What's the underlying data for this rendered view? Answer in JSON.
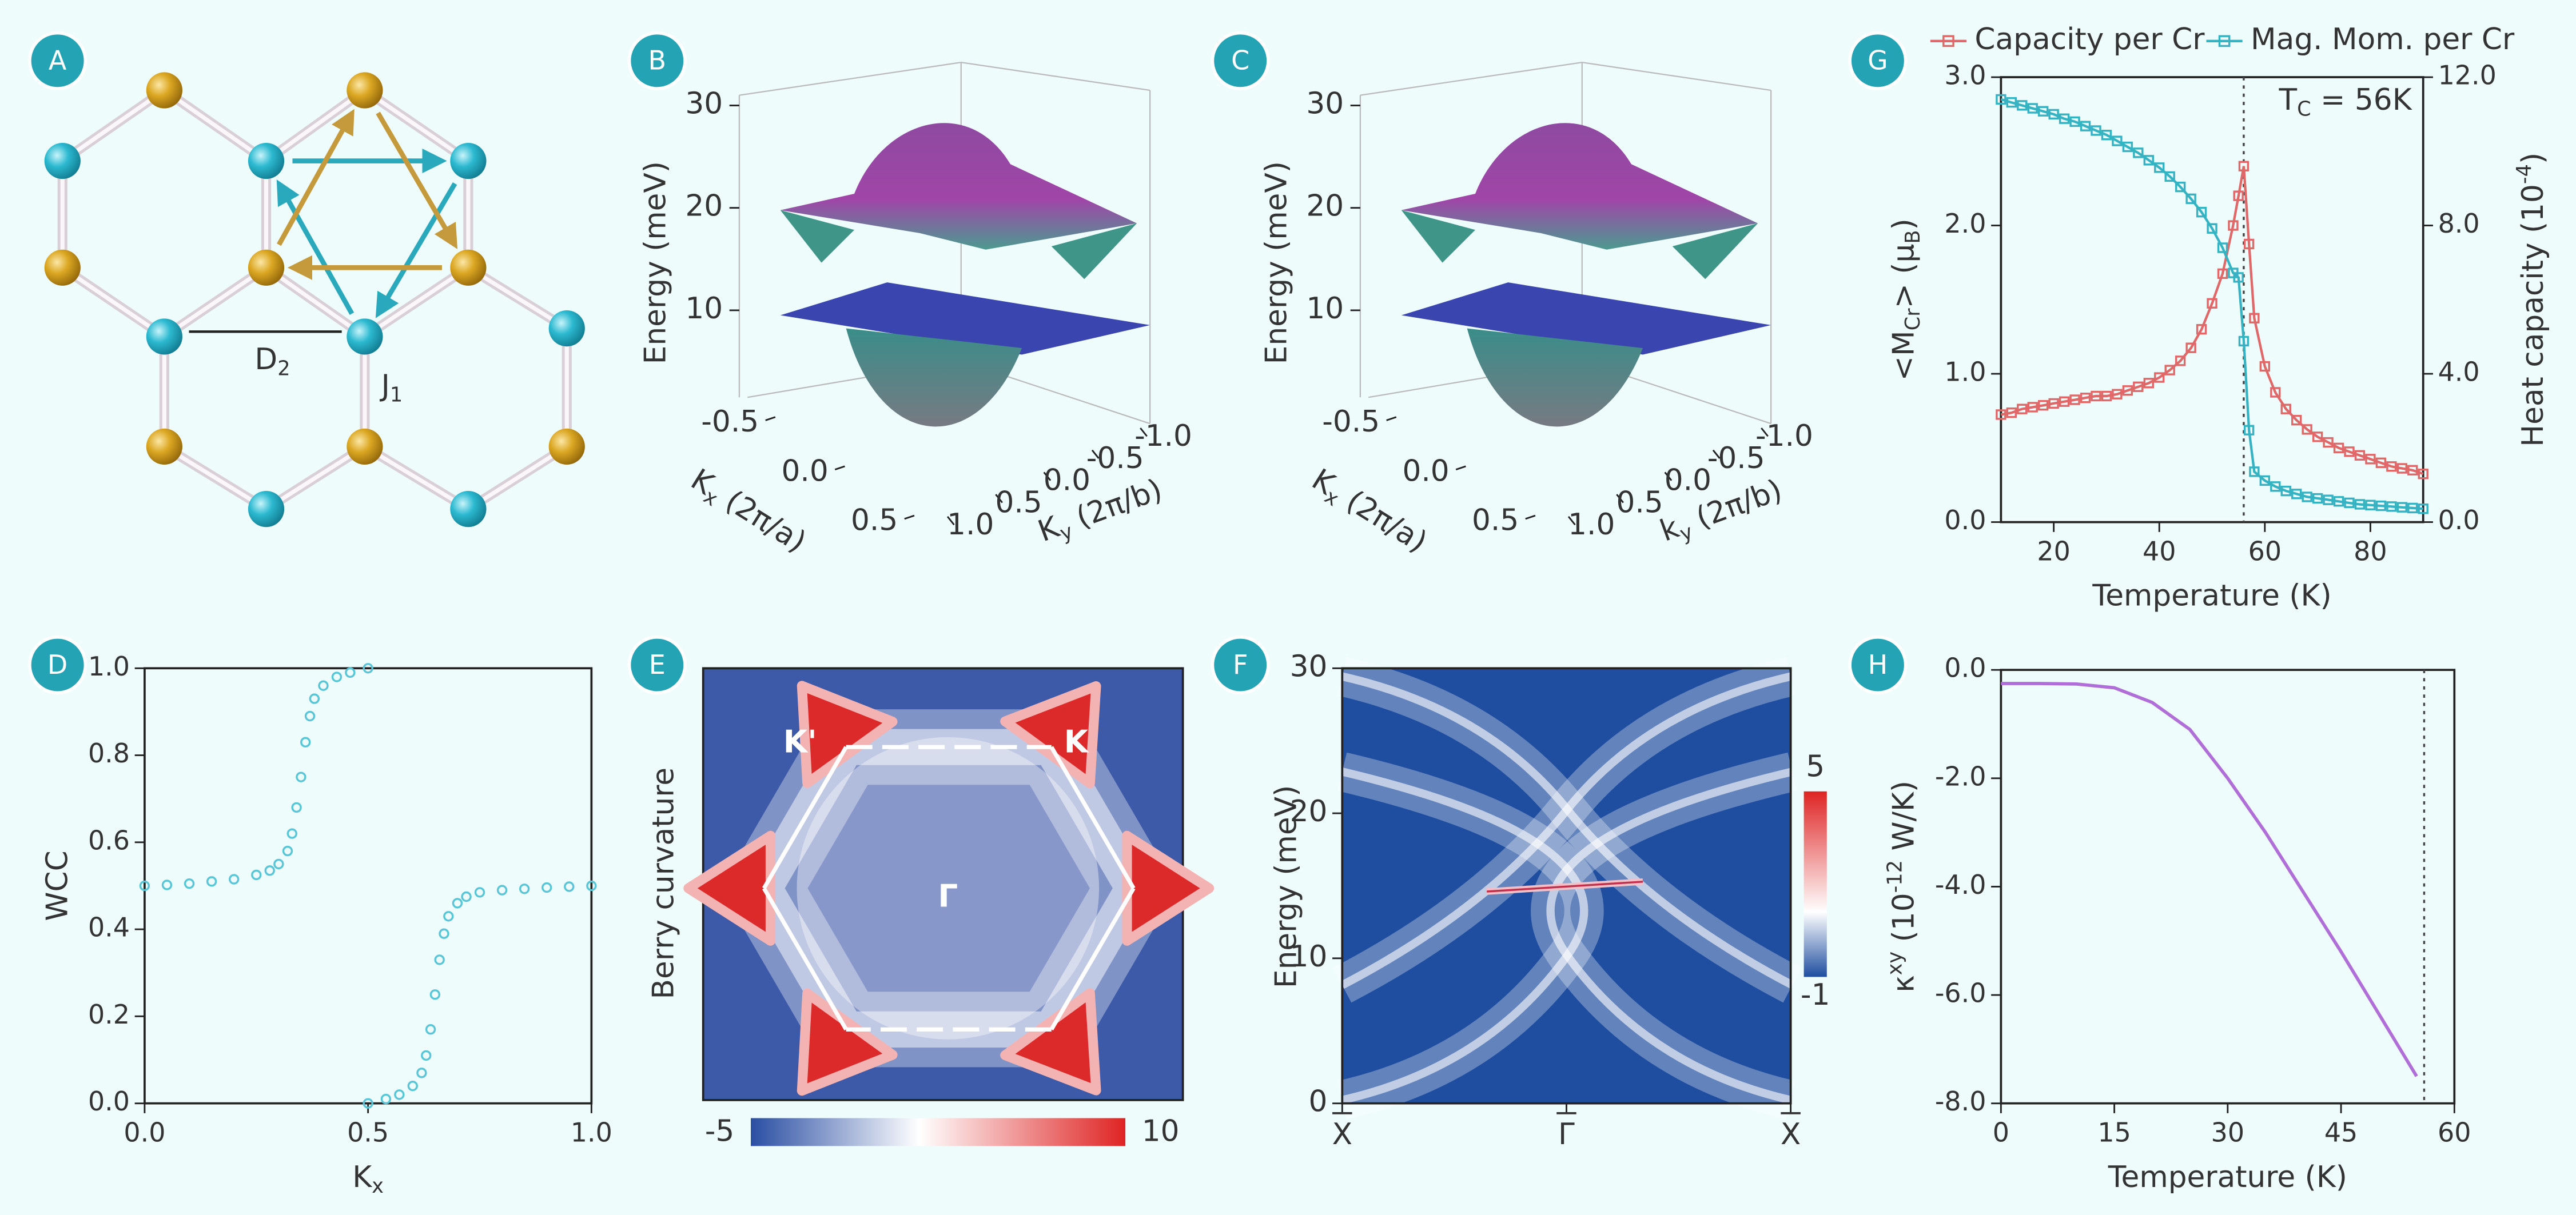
{
  "lattice": {
    "label": "A",
    "annotations": [
      [
        {
          "text": "D"
        },
        {
          "sub": "2"
        }
      ],
      [
        {
          "text": "J"
        },
        {
          "sub": "1"
        }
      ]
    ]
  },
  "chart_data": [
    {
      "type": "surface",
      "label": "B",
      "zlabel": "Energy (meV)",
      "zlim": [
        1.5,
        31
      ],
      "zticks": [
        30,
        20,
        10
      ],
      "kxlabel": [
        {
          "text": "K"
        },
        {
          "sub": "x"
        },
        {
          "text": " (2π/a)"
        }
      ],
      "kxlim": [
        -0.7,
        0.6
      ],
      "kxticks": [
        -0.5,
        {
          "value": 0,
          "label": "0.0"
        },
        0.5
      ],
      "kylabel": [
        {
          "text": "K"
        },
        {
          "sub": "y"
        },
        {
          "text": " (2π/b)"
        }
      ],
      "kylim": [
        1.2,
        -1.1
      ],
      "kyticks": [
        {
          "value": 1,
          "label": "1.0"
        },
        0.5,
        {
          "value": 0,
          "label": "0.0"
        },
        -0.5,
        {
          "value": -1,
          "label": "-1.0"
        }
      ]
    },
    {
      "type": "surface",
      "label": "C",
      "zlabel": "Energy (meV)",
      "zlim": [
        1.5,
        31
      ],
      "zticks": [
        30,
        20,
        10
      ],
      "kxlabel": [
        {
          "text": "K"
        },
        {
          "sub": "x"
        },
        {
          "text": " (2π/a)"
        }
      ],
      "kxlim": [
        -0.7,
        0.6
      ],
      "kxticks": [
        -0.5,
        {
          "value": 0,
          "label": "0.0"
        },
        0.5
      ],
      "kylabel": [
        {
          "text": "k"
        },
        {
          "sub": "y"
        },
        {
          "text": " (2π/b)"
        }
      ],
      "kylim": [
        1.2,
        -1.1
      ],
      "kyticks": [
        {
          "value": 1,
          "label": "1.0"
        },
        0.5,
        {
          "value": 0,
          "label": "0.0"
        },
        -0.5,
        {
          "value": -1,
          "label": "-1.0"
        }
      ]
    },
    {
      "type": "line",
      "label": "G",
      "xlabel": "Temperature (K)",
      "ylabel": [
        {
          "text": "<M"
        },
        {
          "sub": "Cr"
        },
        {
          "text": "> (μ"
        },
        {
          "sub": "B"
        },
        {
          "text": ")"
        }
      ],
      "y2label": [
        {
          "text": "Heat capacity (10"
        },
        {
          "sup": "-4"
        },
        {
          "text": ")"
        }
      ],
      "xlim": [
        10,
        90
      ],
      "xticks": [
        20,
        40,
        60,
        80
      ],
      "ylim": [
        0,
        3
      ],
      "yticks": [
        {
          "value": 0,
          "label": "0.0"
        },
        {
          "value": 1,
          "label": "1.0"
        },
        {
          "value": 2,
          "label": "2.0"
        },
        {
          "value": 3,
          "label": "3.0"
        }
      ],
      "y2lim": [
        0,
        12
      ],
      "y2ticks": [
        {
          "value": 0,
          "label": "0.0"
        },
        {
          "value": 4,
          "label": "4.0"
        },
        {
          "value": 8,
          "label": "8.0"
        },
        {
          "value": 12,
          "label": "12.0"
        }
      ],
      "vline": 56,
      "annotation": [
        {
          "text": "T"
        },
        {
          "sub": "C"
        },
        {
          "text": " = 56K"
        }
      ],
      "x": [
        10,
        12,
        14,
        16,
        18,
        20,
        22,
        24,
        26,
        28,
        30,
        32,
        34,
        36,
        38,
        40,
        42,
        44,
        46,
        48,
        50,
        52,
        54,
        55,
        56,
        57,
        58,
        60,
        62,
        64,
        66,
        68,
        70,
        72,
        74,
        76,
        78,
        80,
        82,
        84,
        86,
        88,
        90
      ],
      "series": [
        {
          "name": "Capacity per Cr",
          "color": "#e06868",
          "axis": "y2",
          "values": [
            2.9,
            2.95,
            3.05,
            3.1,
            3.15,
            3.2,
            3.25,
            3.3,
            3.35,
            3.4,
            3.4,
            3.45,
            3.55,
            3.65,
            3.75,
            3.9,
            4.1,
            4.35,
            4.7,
            5.2,
            5.9,
            6.7,
            8.0,
            8.8,
            9.6,
            7.5,
            5.5,
            4.2,
            3.5,
            3.05,
            2.75,
            2.5,
            2.3,
            2.15,
            2.0,
            1.9,
            1.8,
            1.7,
            1.6,
            1.5,
            1.45,
            1.4,
            1.3
          ]
        },
        {
          "name": "Mag. Mom. per Cr",
          "color": "#35b3c3",
          "values": [
            2.85,
            2.83,
            2.81,
            2.79,
            2.77,
            2.75,
            2.72,
            2.7,
            2.67,
            2.64,
            2.61,
            2.57,
            2.53,
            2.49,
            2.44,
            2.39,
            2.33,
            2.26,
            2.18,
            2.09,
            1.98,
            1.85,
            1.68,
            1.65,
            1.22,
            0.62,
            0.34,
            0.28,
            0.24,
            0.21,
            0.19,
            0.17,
            0.16,
            0.15,
            0.14,
            0.13,
            0.12,
            0.115,
            0.11,
            0.105,
            0.1,
            0.095,
            0.09
          ]
        }
      ]
    },
    {
      "type": "scatter",
      "label": "D",
      "xlabel": [
        {
          "text": "K"
        },
        {
          "sub": "x"
        }
      ],
      "ylabel": "WCC",
      "xlim": [
        0,
        1
      ],
      "xticks": [
        {
          "value": 0,
          "label": "0.0"
        },
        0.5,
        {
          "value": 1,
          "label": "1.0"
        }
      ],
      "ylim": [
        0,
        1
      ],
      "yticks": [
        {
          "value": 0,
          "label": "0.0"
        },
        0.2,
        0.4,
        0.6,
        0.8,
        {
          "value": 1,
          "label": "1.0"
        }
      ],
      "series": [
        {
          "color": "#58c6d6",
          "x": [
            0,
            0.05,
            0.1,
            0.15,
            0.2,
            0.25,
            0.28,
            0.3,
            0.32,
            0.33,
            0.34,
            0.35,
            0.36,
            0.37,
            0.38,
            0.4,
            0.43,
            0.46,
            0.5
          ],
          "values": [
            0.5,
            0.502,
            0.505,
            0.51,
            0.515,
            0.525,
            0.535,
            0.55,
            0.58,
            0.62,
            0.68,
            0.75,
            0.83,
            0.89,
            0.93,
            0.96,
            0.98,
            0.99,
            1.0
          ]
        },
        {
          "color": "#58c6d6",
          "x": [
            0.5,
            0.54,
            0.57,
            0.6,
            0.62,
            0.63,
            0.64,
            0.65,
            0.66,
            0.67,
            0.68,
            0.7,
            0.72,
            0.75,
            0.8,
            0.85,
            0.9,
            0.95,
            1.0
          ],
          "values": [
            0.0,
            0.01,
            0.02,
            0.04,
            0.07,
            0.11,
            0.17,
            0.25,
            0.33,
            0.39,
            0.43,
            0.46,
            0.475,
            0.485,
            0.49,
            0.493,
            0.496,
            0.498,
            0.5
          ]
        }
      ]
    },
    {
      "type": "heatmap",
      "label": "E",
      "ylabel": "Berry curvature",
      "annotations": [
        "K'",
        "K",
        "Γ"
      ],
      "colorbar": {
        "lim": [
          -5,
          10
        ],
        "ticks": [
          -5,
          10
        ]
      }
    },
    {
      "type": "heatmap",
      "label": "F",
      "ylabel": "Energy (meV)",
      "ylim": [
        0,
        30
      ],
      "yticks": [
        0,
        10,
        20,
        30
      ],
      "categories": [
        "X",
        "Γ",
        "X"
      ],
      "colorbar": {
        "lim": [
          -1,
          5
        ],
        "ticks": [
          5,
          -1
        ]
      }
    },
    {
      "type": "line",
      "label": "H",
      "xlabel": "Temperature (K)",
      "ylabel": [
        {
          "text": "κ"
        },
        {
          "sup": "xy"
        },
        {
          "text": " (10"
        },
        {
          "sup": "-12"
        },
        {
          "text": " W/K)"
        }
      ],
      "xlim": [
        0,
        60
      ],
      "xticks": [
        0,
        15,
        30,
        45,
        60
      ],
      "ylim": [
        -8,
        0
      ],
      "yticks": [
        {
          "value": 0,
          "label": "0.0"
        },
        {
          "value": -2,
          "label": "-2.0"
        },
        {
          "value": -4,
          "label": "-4.0"
        },
        {
          "value": -6,
          "label": "-6.0"
        },
        {
          "value": -8,
          "label": "-8.0"
        }
      ],
      "vline": 56,
      "color": "#b06fd8",
      "x": [
        0,
        5,
        10,
        15,
        20,
        25,
        30,
        35,
        40,
        45,
        50,
        55
      ],
      "values": [
        -0.25,
        -0.25,
        -0.26,
        -0.33,
        -0.6,
        -1.1,
        -2.0,
        -3.0,
        -4.1,
        -5.2,
        -6.35,
        -7.5
      ]
    }
  ]
}
